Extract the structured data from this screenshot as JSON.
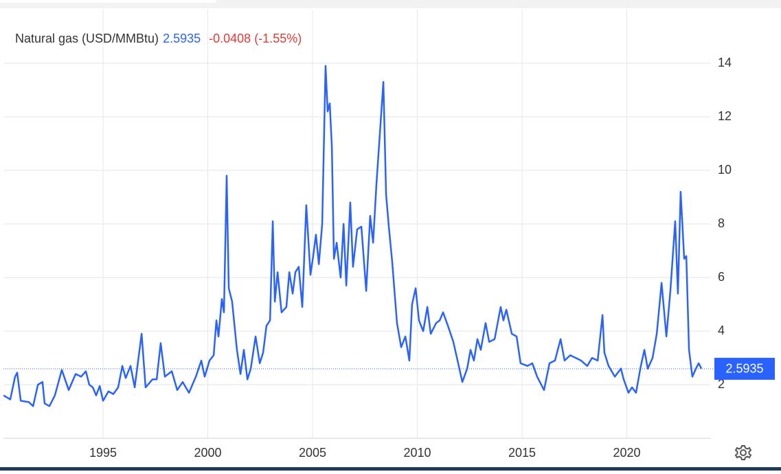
{
  "chart_data": {
    "type": "line",
    "last_value": 2.5935,
    "change": -0.0408,
    "change_text": "(-1.55%)",
    "xlim": [
      1990.08,
      2024.18
    ],
    "xticks": [
      1995,
      2000,
      2005,
      2010,
      2015,
      2020
    ],
    "ylim": [
      0,
      16
    ],
    "yticks": [
      2,
      4,
      6,
      8,
      10,
      12,
      14
    ],
    "grid": true,
    "x": [
      1990.25,
      1990.57,
      1990.8,
      1990.9,
      1991.07,
      1991.46,
      1991.66,
      1991.89,
      1992.11,
      1992.21,
      1992.44,
      1992.7,
      1993.03,
      1993.36,
      1993.69,
      1993.95,
      1994.18,
      1994.34,
      1994.51,
      1994.67,
      1994.84,
      1995.0,
      1995.26,
      1995.49,
      1995.72,
      1995.92,
      1996.08,
      1996.31,
      1996.51,
      1996.84,
      1997.03,
      1997.36,
      1997.56,
      1997.75,
      1997.95,
      1998.28,
      1998.54,
      1998.8,
      1999.1,
      1999.43,
      1999.69,
      1999.85,
      2000.08,
      2000.28,
      2000.41,
      2000.51,
      2000.67,
      2000.77,
      2000.9,
      2001.0,
      2001.16,
      2001.39,
      2001.56,
      2001.72,
      2001.89,
      2002.05,
      2002.28,
      2002.48,
      2002.64,
      2002.8,
      2002.97,
      2003.1,
      2003.2,
      2003.33,
      2003.52,
      2003.75,
      2003.89,
      2004.05,
      2004.18,
      2004.34,
      2004.51,
      2004.7,
      2004.9,
      2005.03,
      2005.16,
      2005.3,
      2005.46,
      2005.62,
      2005.72,
      2005.82,
      2005.92,
      2006.02,
      2006.15,
      2006.34,
      2006.48,
      2006.61,
      2006.8,
      2006.93,
      2007.13,
      2007.33,
      2007.56,
      2007.75,
      2007.89,
      2008.05,
      2008.38,
      2008.51,
      2008.64,
      2008.8,
      2009.03,
      2009.23,
      2009.43,
      2009.62,
      2009.75,
      2009.92,
      2010.08,
      2010.28,
      2010.48,
      2010.64,
      2010.9,
      2011.07,
      2011.23,
      2011.46,
      2011.72,
      2011.95,
      2012.15,
      2012.38,
      2012.54,
      2012.7,
      2012.87,
      2013.03,
      2013.26,
      2013.43,
      2013.69,
      2013.98,
      2014.11,
      2014.25,
      2014.51,
      2014.74,
      2014.93,
      2015.26,
      2015.49,
      2015.72,
      2016.05,
      2016.31,
      2016.57,
      2016.84,
      2017.03,
      2017.3,
      2017.56,
      2017.82,
      2018.11,
      2018.34,
      2018.61,
      2018.84,
      2018.93,
      2019.13,
      2019.43,
      2019.72,
      2019.85,
      2020.08,
      2020.25,
      2020.44,
      2020.67,
      2020.84,
      2021.0,
      2021.23,
      2021.43,
      2021.66,
      2021.89,
      2022.08,
      2022.31,
      2022.44,
      2022.57,
      2022.74,
      2022.84,
      2022.97,
      2023.13,
      2023.3,
      2023.43,
      2023.56
    ],
    "series": [
      {
        "name": "Natural gas (USD/MMBtu)",
        "color": "#2962ff",
        "values": [
          1.6,
          1.45,
          2.3,
          2.45,
          1.4,
          1.35,
          1.2,
          2.0,
          2.1,
          1.3,
          1.2,
          1.6,
          2.55,
          1.8,
          2.4,
          2.3,
          2.5,
          2.0,
          1.9,
          1.6,
          1.95,
          1.4,
          1.75,
          1.65,
          1.9,
          2.7,
          2.25,
          2.7,
          1.9,
          3.9,
          1.9,
          2.2,
          2.2,
          3.55,
          2.3,
          2.5,
          1.8,
          2.1,
          1.7,
          2.3,
          2.9,
          2.3,
          2.9,
          3.1,
          4.4,
          3.8,
          5.2,
          4.7,
          9.8,
          5.6,
          5.1,
          3.3,
          2.4,
          3.3,
          2.2,
          2.6,
          3.8,
          2.8,
          3.2,
          4.2,
          4.4,
          8.1,
          5.1,
          6.2,
          4.7,
          4.9,
          6.2,
          5.4,
          6.2,
          6.4,
          4.9,
          8.7,
          6.1,
          6.8,
          7.6,
          6.5,
          8.0,
          13.9,
          12.2,
          12.5,
          10.9,
          6.7,
          7.3,
          6.0,
          8.0,
          5.7,
          8.8,
          6.4,
          7.8,
          7.9,
          5.5,
          8.3,
          7.3,
          9.5,
          13.3,
          9.1,
          7.9,
          6.6,
          4.3,
          3.4,
          3.8,
          2.9,
          5.0,
          5.6,
          4.4,
          4.0,
          4.9,
          3.9,
          4.3,
          4.4,
          4.7,
          4.2,
          3.6,
          2.8,
          2.1,
          2.6,
          3.3,
          2.9,
          3.7,
          3.3,
          4.3,
          3.6,
          3.7,
          4.9,
          4.4,
          4.8,
          3.9,
          3.8,
          2.8,
          2.7,
          2.8,
          2.3,
          1.8,
          2.8,
          2.9,
          3.7,
          2.9,
          3.1,
          3.0,
          2.9,
          2.7,
          3.0,
          2.9,
          4.6,
          3.2,
          2.7,
          2.3,
          2.6,
          2.2,
          1.7,
          1.9,
          1.7,
          2.7,
          3.3,
          2.6,
          3.0,
          3.9,
          5.8,
          3.8,
          5.5,
          8.1,
          5.4,
          9.2,
          6.7,
          6.8,
          3.3,
          2.3,
          2.6,
          2.8,
          2.6
        ]
      }
    ]
  }
}
